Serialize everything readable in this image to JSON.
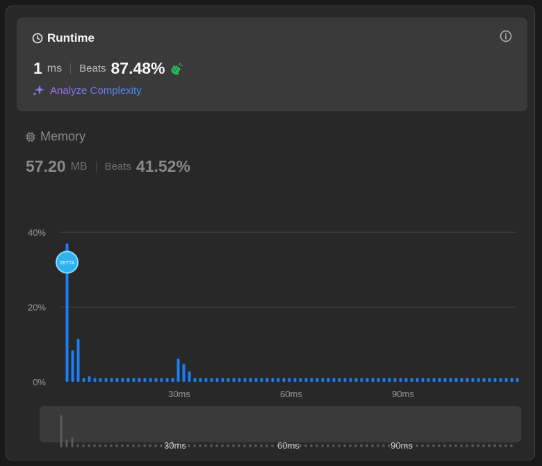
{
  "runtime": {
    "title": "Runtime",
    "value": "1",
    "unit": "ms",
    "beats_label": "Beats",
    "beats_value": "87.48%",
    "analyze_label": "Analyze Complexity"
  },
  "memory": {
    "title": "Memory",
    "value": "57.20",
    "unit": "MB",
    "beats_label": "Beats",
    "beats_value": "41.52%"
  },
  "marker_label": "ZETTA",
  "colors": {
    "accent": "#1a7ef5",
    "marker": "#2fb2f0",
    "muted_bar": "#5a5a5a",
    "clap": "#2cbb5d"
  },
  "icons": {
    "runtime": "clock-icon",
    "memory": "chip-icon",
    "info": "info-icon",
    "analyze": "sparkle-icon",
    "clap": "clap-icon"
  },
  "chart_data": {
    "type": "bar",
    "x_unit": "ms",
    "y_ticks": [
      "0%",
      "20%",
      "40%"
    ],
    "ylim": [
      0,
      40
    ],
    "x_ticks": [
      "30ms",
      "60ms",
      "90ms"
    ],
    "x_tick_values": [
      30,
      60,
      90
    ],
    "x_range": [
      0,
      120
    ],
    "highlight_x": 1,
    "values": [
      37,
      8.5,
      11.5,
      1,
      1.5,
      1,
      1,
      1,
      1,
      1,
      1,
      1,
      1,
      1,
      1,
      1,
      1,
      1,
      1,
      1,
      6.2,
      4.8,
      2.8,
      1,
      1,
      1,
      1,
      1,
      1,
      1,
      1,
      1,
      1,
      1,
      1,
      1,
      1,
      1,
      1,
      1,
      1,
      1,
      1,
      1,
      1,
      1,
      1,
      1,
      1,
      1,
      1,
      1,
      1,
      1,
      1,
      1,
      1,
      1,
      1,
      1,
      1,
      1,
      1,
      1,
      1,
      1,
      1,
      1,
      1,
      1,
      1,
      1,
      1,
      1,
      1,
      1,
      1,
      1,
      1,
      1,
      1,
      1
    ]
  }
}
